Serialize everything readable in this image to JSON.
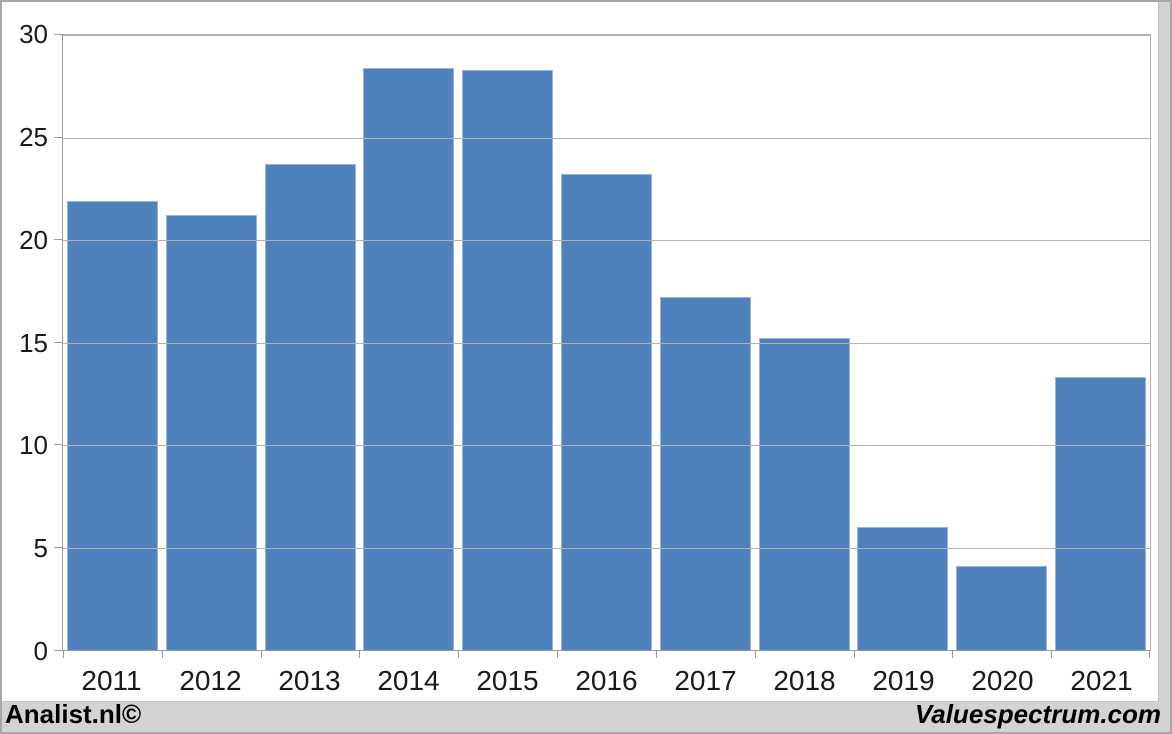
{
  "chart_data": {
    "type": "bar",
    "title": "",
    "xlabel": "",
    "ylabel": "",
    "categories": [
      "2011",
      "2012",
      "2013",
      "2014",
      "2015",
      "2016",
      "2017",
      "2018",
      "2019",
      "2020",
      "2021"
    ],
    "values": [
      21.9,
      21.2,
      23.7,
      28.4,
      28.3,
      23.2,
      17.2,
      15.2,
      6.0,
      4.1,
      13.3
    ],
    "ylim": [
      0,
      30
    ],
    "yticks": [
      0,
      5,
      10,
      15,
      20,
      25,
      30
    ],
    "grid": true,
    "legend": false,
    "bar_color": "#4f81bd",
    "bar_border_color": "#97b5d9",
    "gridline_color": "#b3b3b3",
    "axis_color": "#9b9b9b"
  },
  "footer": {
    "left": "Analist.nl©",
    "right": "Valuespectrum.com"
  }
}
